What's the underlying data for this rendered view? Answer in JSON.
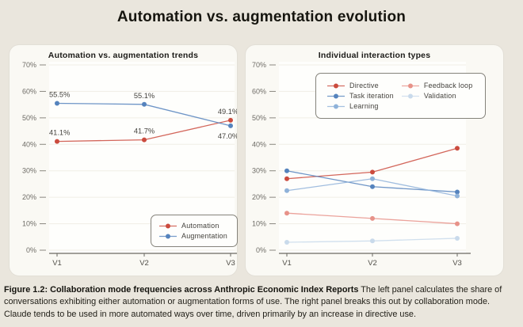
{
  "page": {
    "title": "Automation vs. augmentation evolution",
    "background": "#eae6dd"
  },
  "caption": {
    "bold": "Figure 1.2: Collaboration mode frequencies across Anthropic Economic Index Reports",
    "rest": " The left panel calculates the share of conversations exhibiting either automation or augmentation forms of use. The right panel breaks this out by collaboration mode. Claude tends to be used in more automated ways over time, driven primarily by an increase in directive use."
  },
  "chart_data": [
    {
      "type": "line",
      "title": "Automation vs. augmentation trends",
      "categories": [
        "V1",
        "V2",
        "V3"
      ],
      "ylabel": "",
      "xlabel": "",
      "ylim": [
        0,
        70
      ],
      "ytick_step": 10,
      "ytick_suffix": "%",
      "grid": true,
      "legend_position": "bottom-right",
      "legend_columns": 1,
      "series": [
        {
          "name": "Automation",
          "color": "#cb4b3e",
          "values": [
            41.1,
            41.7,
            49.1
          ],
          "point_labels": [
            "41.1%",
            "41.7%",
            "49.1%"
          ],
          "label_side": [
            "above",
            "above",
            "above"
          ]
        },
        {
          "name": "Augmentation",
          "color": "#5583bd",
          "values": [
            55.5,
            55.1,
            47.0
          ],
          "point_labels": [
            "55.5%",
            "55.1%",
            "47.0%"
          ],
          "label_side": [
            "above",
            "above",
            "below"
          ]
        }
      ]
    },
    {
      "type": "line",
      "title": "Individual interaction types",
      "categories": [
        "V1",
        "V2",
        "V3"
      ],
      "ylabel": "",
      "xlabel": "",
      "ylim": [
        0,
        70
      ],
      "ytick_step": 10,
      "ytick_suffix": "%",
      "grid": true,
      "legend_position": "top",
      "legend_columns": 2,
      "series": [
        {
          "name": "Directive",
          "color": "#cb4b3e",
          "values": [
            27.0,
            29.5,
            38.5
          ]
        },
        {
          "name": "Feedback loop",
          "color": "#e79289",
          "values": [
            14.0,
            12.0,
            10.0
          ]
        },
        {
          "name": "Task iteration",
          "color": "#5583bd",
          "values": [
            30.0,
            24.0,
            22.0
          ]
        },
        {
          "name": "Validation",
          "color": "#c9daeb",
          "values": [
            3.0,
            3.5,
            4.5
          ]
        },
        {
          "name": "Learning",
          "color": "#8fb2d9",
          "values": [
            22.5,
            27.0,
            20.5
          ]
        }
      ]
    }
  ]
}
